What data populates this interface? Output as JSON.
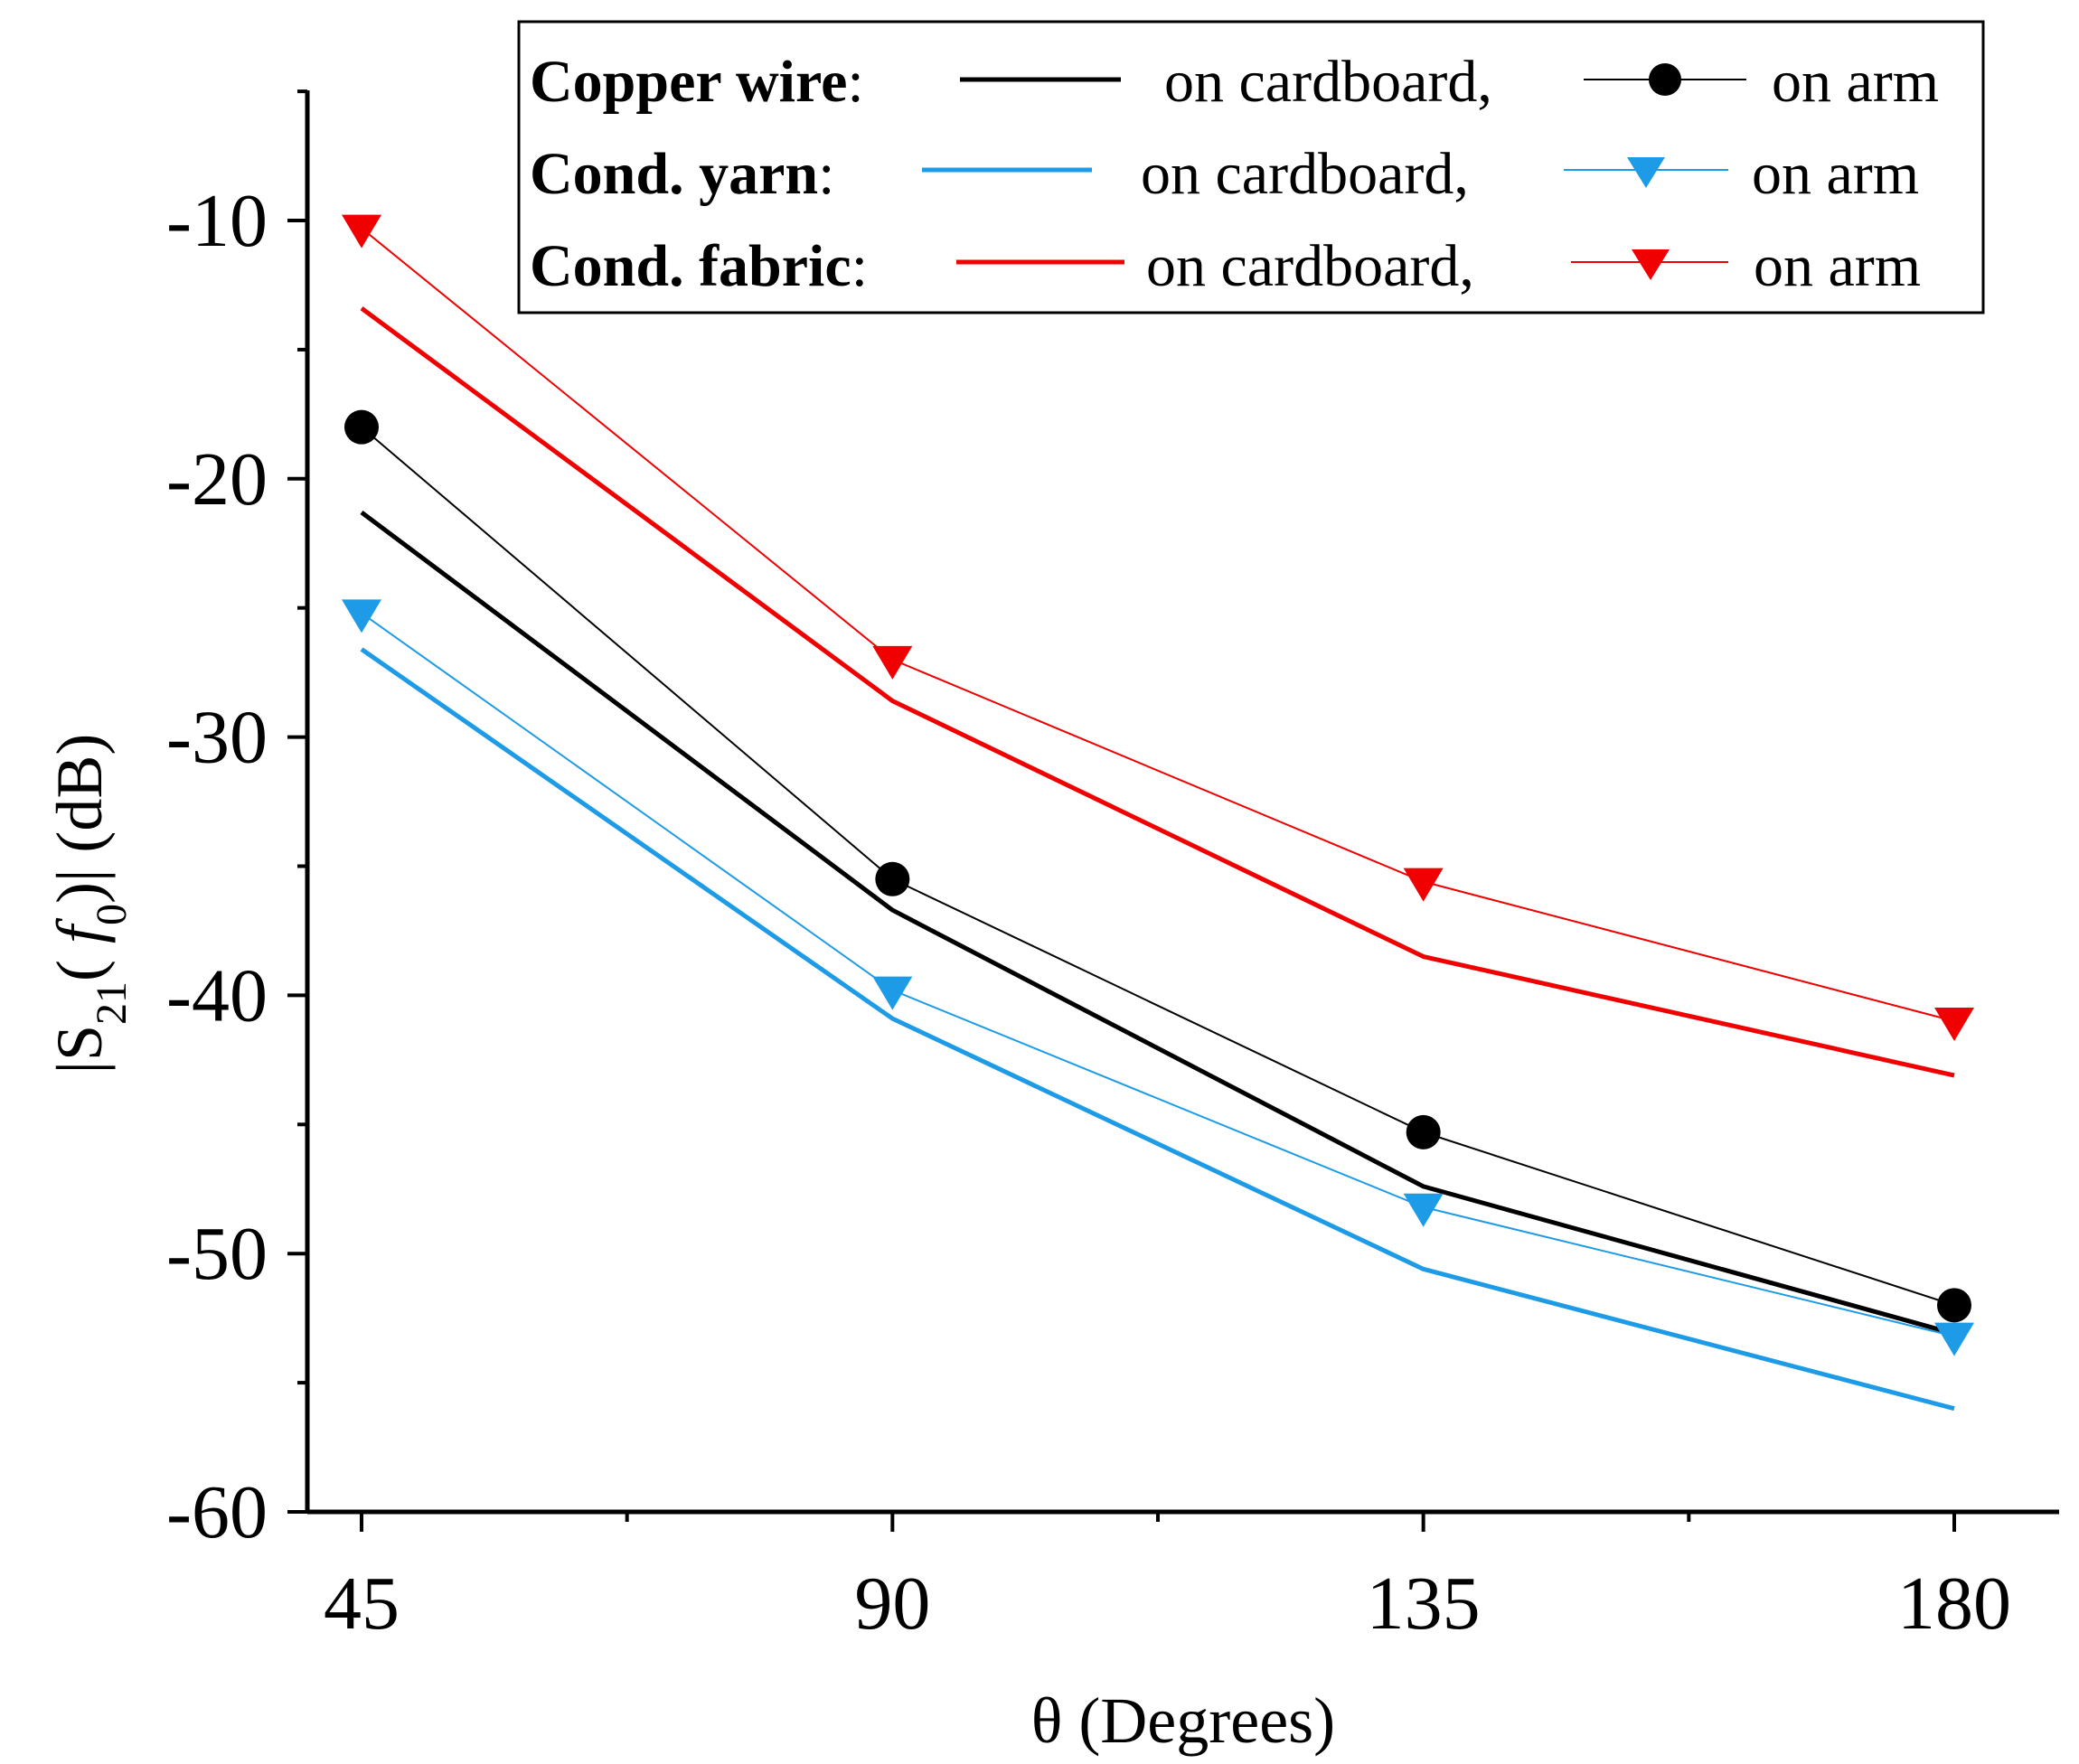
{
  "chart_data": {
    "type": "line",
    "title": "",
    "xlabel": "θ (Degrees)",
    "ylabel": {
      "prefix": "|S",
      "sub": "21",
      "mid": "( ",
      "italic": "f",
      "sub2": "0",
      "suffix": ")|  (dB)"
    },
    "x": [
      45,
      90,
      135,
      180
    ],
    "xlim": [
      40,
      190
    ],
    "ylim": [
      -60,
      -5
    ],
    "xticks": [
      45,
      90,
      135,
      180
    ],
    "xticklabels": [
      "45",
      "90",
      "135",
      "180"
    ],
    "yticks": [
      -60,
      -50,
      -40,
      -30,
      -20,
      -10
    ],
    "yticklabels": [
      "-60",
      "-50",
      "-40",
      "-30",
      "-20",
      "-10"
    ],
    "grid": false,
    "legend_position": "top-right",
    "legend": {
      "rows": [
        {
          "material": "Copper wire",
          "sep": ":",
          "cardboard_text": "on cardboard,",
          "arm_text": "on arm"
        },
        {
          "material": "Cond. yarn",
          "sep": ":",
          "cardboard_text": "on cardboard,",
          "arm_text": "on arm"
        },
        {
          "material": "Cond. fabric",
          "sep": ":",
          "cardboard_text": "on cardboard,",
          "arm_text": "on arm"
        }
      ]
    },
    "series": [
      {
        "name": "Copper wire on cardboard",
        "color": "#000000",
        "marker": "none",
        "width": "thick",
        "values": [
          -21.3,
          -36.7,
          -47.4,
          -53.1
        ]
      },
      {
        "name": "Copper wire on arm",
        "color": "#000000",
        "marker": "circle",
        "width": "thin",
        "values": [
          -18.0,
          -35.5,
          -45.3,
          -52.0
        ]
      },
      {
        "name": "Cond. yarn on cardboard",
        "color": "#1e9be6",
        "marker": "none",
        "width": "thick",
        "values": [
          -26.6,
          -40.9,
          -50.6,
          -56.0
        ]
      },
      {
        "name": "Cond. yarn on arm",
        "color": "#1e9be6",
        "marker": "triangle-down",
        "width": "thin",
        "values": [
          -25.2,
          -39.8,
          -48.2,
          -53.2
        ]
      },
      {
        "name": "Cond. fabric on cardboard",
        "color": "#f00000",
        "marker": "none",
        "width": "thick",
        "values": [
          -13.4,
          -28.6,
          -38.5,
          -43.1
        ]
      },
      {
        "name": "Cond. fabric on arm",
        "color": "#f00000",
        "marker": "triangle-down",
        "width": "thin",
        "values": [
          -10.3,
          -27.0,
          -35.6,
          -41.0
        ]
      }
    ]
  }
}
